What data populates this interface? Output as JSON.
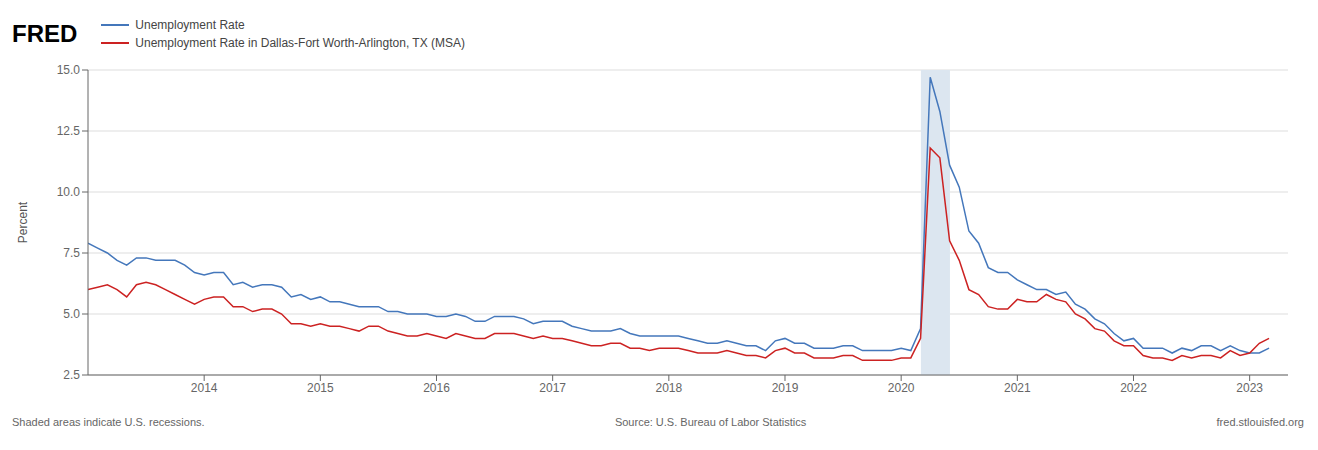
{
  "chart_data": {
    "type": "line",
    "annotations": [
      "FRED",
      "Shaded areas indicate U.S. recessions.",
      "Source: U.S. Bureau of Labor Statistics",
      "fred.stlouisfed.org"
    ],
    "ylabel": "Percent",
    "x": [
      2013.0,
      2013.083,
      2013.167,
      2013.25,
      2013.333,
      2013.417,
      2013.5,
      2013.583,
      2013.667,
      2013.75,
      2013.833,
      2013.917,
      2014.0,
      2014.083,
      2014.167,
      2014.25,
      2014.333,
      2014.417,
      2014.5,
      2014.583,
      2014.667,
      2014.75,
      2014.833,
      2014.917,
      2015.0,
      2015.083,
      2015.167,
      2015.25,
      2015.333,
      2015.417,
      2015.5,
      2015.583,
      2015.667,
      2015.75,
      2015.833,
      2015.917,
      2016.0,
      2016.083,
      2016.167,
      2016.25,
      2016.333,
      2016.417,
      2016.5,
      2016.583,
      2016.667,
      2016.75,
      2016.833,
      2016.917,
      2017.0,
      2017.083,
      2017.167,
      2017.25,
      2017.333,
      2017.417,
      2017.5,
      2017.583,
      2017.667,
      2017.75,
      2017.833,
      2017.917,
      2018.0,
      2018.083,
      2018.167,
      2018.25,
      2018.333,
      2018.417,
      2018.5,
      2018.583,
      2018.667,
      2018.75,
      2018.833,
      2018.917,
      2019.0,
      2019.083,
      2019.167,
      2019.25,
      2019.333,
      2019.417,
      2019.5,
      2019.583,
      2019.667,
      2019.75,
      2019.833,
      2019.917,
      2020.0,
      2020.083,
      2020.167,
      2020.25,
      2020.333,
      2020.417,
      2020.5,
      2020.583,
      2020.667,
      2020.75,
      2020.833,
      2020.917,
      2021.0,
      2021.083,
      2021.167,
      2021.25,
      2021.333,
      2021.417,
      2021.5,
      2021.583,
      2021.667,
      2021.75,
      2021.833,
      2021.917,
      2022.0,
      2022.083,
      2022.167,
      2022.25,
      2022.333,
      2022.417,
      2022.5,
      2022.583,
      2022.667,
      2022.75,
      2022.833,
      2022.917,
      2023.0,
      2023.083,
      2023.167
    ],
    "series": [
      {
        "name": "Unemployment Rate",
        "color": "#4477bb",
        "values": [
          7.9,
          7.7,
          7.5,
          7.2,
          7.0,
          7.3,
          7.3,
          7.2,
          7.2,
          7.2,
          7.0,
          6.7,
          6.6,
          6.7,
          6.7,
          6.2,
          6.3,
          6.1,
          6.2,
          6.2,
          6.1,
          5.7,
          5.8,
          5.6,
          5.7,
          5.5,
          5.5,
          5.4,
          5.3,
          5.3,
          5.3,
          5.1,
          5.1,
          5.0,
          5.0,
          5.0,
          4.9,
          4.9,
          5.0,
          4.9,
          4.7,
          4.7,
          4.9,
          4.9,
          4.9,
          4.8,
          4.6,
          4.7,
          4.7,
          4.7,
          4.5,
          4.4,
          4.3,
          4.3,
          4.3,
          4.4,
          4.2,
          4.1,
          4.1,
          4.1,
          4.1,
          4.1,
          4.0,
          3.9,
          3.8,
          3.8,
          3.9,
          3.8,
          3.7,
          3.7,
          3.5,
          3.9,
          4.0,
          3.8,
          3.8,
          3.6,
          3.6,
          3.6,
          3.7,
          3.7,
          3.5,
          3.5,
          3.5,
          3.5,
          3.6,
          3.5,
          4.4,
          14.7,
          13.3,
          11.1,
          10.2,
          8.4,
          7.9,
          6.9,
          6.7,
          6.7,
          6.4,
          6.2,
          6.0,
          6.0,
          5.8,
          5.9,
          5.4,
          5.2,
          4.8,
          4.6,
          4.2,
          3.9,
          4.0,
          3.6,
          3.6,
          3.6,
          3.4,
          3.6,
          3.5,
          3.7,
          3.7,
          3.5,
          3.7,
          3.5,
          3.4,
          3.4,
          3.6
        ]
      },
      {
        "name": "Unemployment Rate in Dallas-Fort Worth-Arlington, TX (MSA)",
        "color": "#cc2222",
        "values": [
          6.0,
          6.1,
          6.2,
          6.0,
          5.7,
          6.2,
          6.3,
          6.2,
          6.0,
          5.8,
          5.6,
          5.4,
          5.6,
          5.7,
          5.7,
          5.3,
          5.3,
          5.1,
          5.2,
          5.2,
          5.0,
          4.6,
          4.6,
          4.5,
          4.6,
          4.5,
          4.5,
          4.4,
          4.3,
          4.5,
          4.5,
          4.3,
          4.2,
          4.1,
          4.1,
          4.2,
          4.1,
          4.0,
          4.2,
          4.1,
          4.0,
          4.0,
          4.2,
          4.2,
          4.2,
          4.1,
          4.0,
          4.1,
          4.0,
          4.0,
          3.9,
          3.8,
          3.7,
          3.7,
          3.8,
          3.8,
          3.6,
          3.6,
          3.5,
          3.6,
          3.6,
          3.6,
          3.5,
          3.4,
          3.4,
          3.4,
          3.5,
          3.4,
          3.3,
          3.3,
          3.2,
          3.5,
          3.6,
          3.4,
          3.4,
          3.2,
          3.2,
          3.2,
          3.3,
          3.3,
          3.1,
          3.1,
          3.1,
          3.1,
          3.2,
          3.2,
          4.0,
          11.8,
          11.4,
          8.0,
          7.2,
          6.0,
          5.8,
          5.3,
          5.2,
          5.2,
          5.6,
          5.5,
          5.5,
          5.8,
          5.6,
          5.5,
          5.0,
          4.8,
          4.4,
          4.3,
          3.9,
          3.7,
          3.7,
          3.3,
          3.2,
          3.2,
          3.1,
          3.3,
          3.2,
          3.3,
          3.3,
          3.2,
          3.5,
          3.3,
          3.4,
          3.8,
          4.0
        ]
      }
    ],
    "shaded_spans": [
      {
        "x1": 2020.17,
        "x2": 2020.42,
        "color": "#dce6f0"
      }
    ],
    "xlim": [
      2013.0,
      2023.33
    ],
    "xticks": [
      2014,
      2015,
      2016,
      2017,
      2018,
      2019,
      2020,
      2021,
      2022,
      2023
    ],
    "ylim": [
      2.5,
      15.0
    ],
    "yticks": [
      2.5,
      {
        "value": 5.0,
        "label": "5.0"
      },
      7.5,
      {
        "value": 10.0,
        "label": "10.0"
      },
      12.5,
      {
        "value": 15.0,
        "label": "15.0"
      }
    ],
    "grid": true,
    "legend": "upper left"
  }
}
